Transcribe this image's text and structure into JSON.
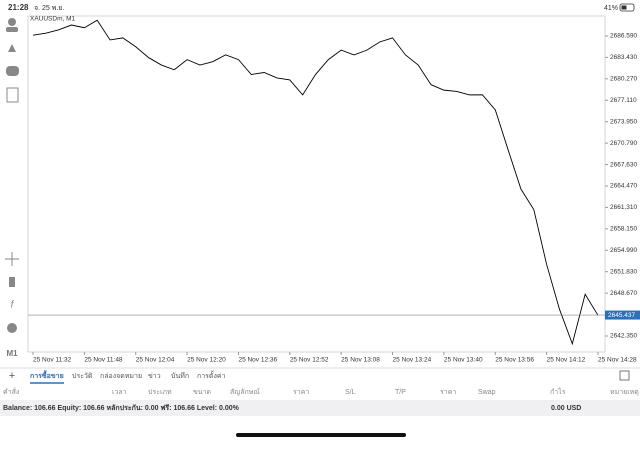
{
  "status_bar": {
    "time": "21:28",
    "date": "จ. 25 พ.ย.",
    "battery": "41%"
  },
  "sidebar": {
    "timeframe": "M1"
  },
  "chart_data": {
    "type": "line",
    "title": "XAUUSDm, M1",
    "categories": [
      "25 Nov 11:32",
      null,
      null,
      null,
      "25 Nov 11:48",
      null,
      null,
      null,
      "25 Nov 12:04",
      null,
      null,
      null,
      "25 Nov 12:20",
      null,
      null,
      null,
      "25 Nov 12:36",
      null,
      null,
      null,
      "25 Nov 12:52",
      null,
      null,
      null,
      "25 Nov 13:08",
      null,
      null,
      null,
      "25 Nov 13:24",
      null,
      null,
      null,
      "25 Nov 13:40",
      null,
      null,
      null,
      "25 Nov 13:56",
      null,
      null,
      null,
      "25 Nov 14:12",
      null,
      null,
      null,
      "25 Nov 14:28"
    ],
    "series": [
      {
        "name": "XAUUSDm",
        "color": "#000000",
        "values": [
          2686.7,
          2687.0,
          2687.5,
          2688.2,
          2687.8,
          2688.9,
          2686.0,
          2686.3,
          2685.0,
          2683.4,
          2682.3,
          2681.6,
          2683.1,
          2682.3,
          2682.8,
          2683.8,
          2683.1,
          2680.9,
          2681.2,
          2680.4,
          2680.1,
          2677.9,
          2680.9,
          2683.1,
          2684.5,
          2683.8,
          2684.5,
          2685.7,
          2686.3,
          2683.8,
          2682.3,
          2679.4,
          2678.6,
          2678.4,
          2677.9,
          2677.9,
          2675.7,
          2669.8,
          2664.0,
          2661.0,
          2652.9,
          2646.3,
          2641.2,
          2648.5,
          2645.4
        ]
      }
    ],
    "ylim": [
      2639.99,
      2689.53
    ],
    "yticks": [
      {
        "value": 2686.59,
        "label": "2686.590"
      },
      {
        "value": 2683.43,
        "label": "2683.430"
      },
      {
        "value": 2680.27,
        "label": "2680.270"
      },
      {
        "value": 2677.11,
        "label": "2677.110"
      },
      {
        "value": 2673.95,
        "label": "2673.950"
      },
      {
        "value": 2670.79,
        "label": "2670.790"
      },
      {
        "value": 2667.63,
        "label": "2667.630"
      },
      {
        "value": 2664.47,
        "label": "2664.470"
      },
      {
        "value": 2661.31,
        "label": "2661.310"
      },
      {
        "value": 2658.15,
        "label": "2658.150"
      },
      {
        "value": 2654.99,
        "label": "2654.990"
      },
      {
        "value": 2651.83,
        "label": "2651.830"
      },
      {
        "value": 2648.67,
        "label": "2648.670"
      },
      {
        "value": 2642.35,
        "label": "2642.350"
      }
    ],
    "current_price": 2645.437,
    "price_color": "#2d6fb8",
    "grid": false
  },
  "tabs": [
    "การซื้อขาย",
    "ประวัติ",
    "กล่องจดหมาย",
    "ข่าว",
    "บันทึก",
    "การตั้งค่า"
  ],
  "table": {
    "columns": [
      "คำสั่ง",
      "เวลา",
      "ประเภท",
      "ขนาด",
      "สัญลักษณ์",
      "ราคา",
      "S/L",
      "T/P",
      "ราคา",
      "Swap",
      "กำไร",
      "หมายเหตุ"
    ]
  },
  "balance": {
    "summary": "Balance: 106.66 Equity: 106.66 หลักประกัน: 0.00 ฟรี: 106.66 Level: 0.00%",
    "profit": "0.00 USD"
  }
}
